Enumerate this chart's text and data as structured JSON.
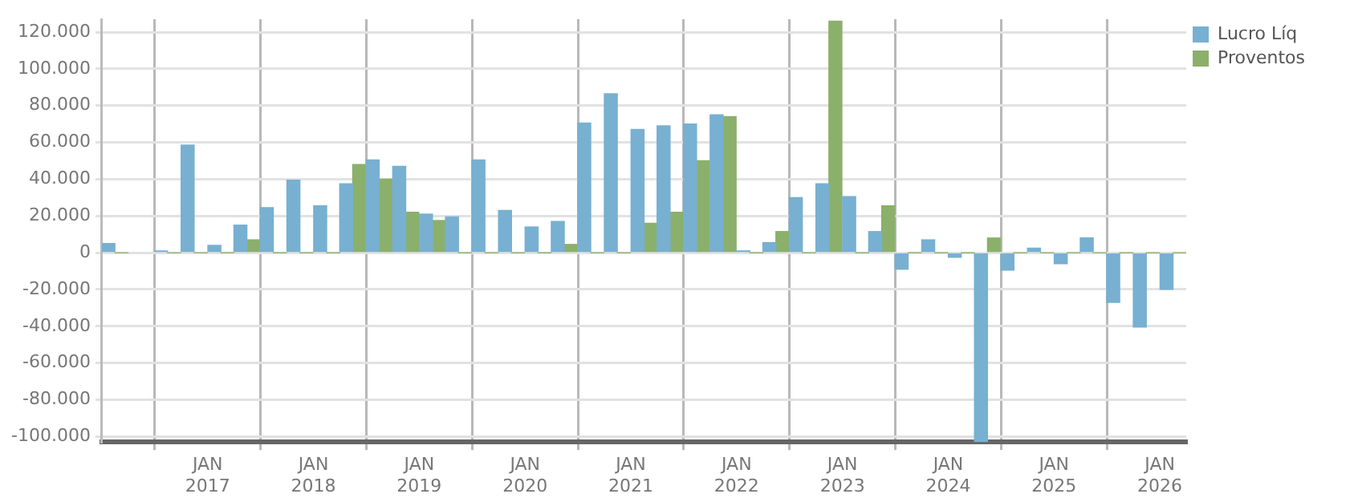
{
  "chart_data": {
    "type": "bar",
    "x": [
      "2016-02-15",
      "2016-05-15",
      "2016-08-15",
      "2016-11-15",
      "2017-02-15",
      "2017-05-15",
      "2017-08-15",
      "2017-11-15",
      "2018-02-15",
      "2018-05-15",
      "2018-08-15",
      "2018-11-15",
      "2019-02-15",
      "2019-05-15",
      "2019-08-15",
      "2019-11-15",
      "2020-02-15",
      "2020-05-15",
      "2020-08-15",
      "2020-11-15",
      "2021-02-15",
      "2021-05-15",
      "2021-08-15",
      "2021-11-15",
      "2022-02-15",
      "2022-05-15",
      "2022-08-15",
      "2022-11-15",
      "2023-02-15",
      "2023-05-15",
      "2023-08-15",
      "2023-11-15",
      "2024-02-15",
      "2024-05-15",
      "2024-08-15",
      "2024-11-15",
      "2025-02-15",
      "2025-05-15",
      "2025-08-15",
      "2025-11-15",
      "2026-02-15"
    ],
    "series": [
      {
        "name": "Lucro Líq",
        "color": "#77b0d1",
        "values": [
          5000,
          null,
          1000,
          58500,
          4000,
          15000,
          24500,
          39500,
          25500,
          37500,
          50500,
          47000,
          21000,
          19500,
          50500,
          23000,
          14000,
          17000,
          70500,
          86500,
          67000,
          69000,
          70000,
          75000,
          1000,
          5500,
          30000,
          37500,
          30500,
          11500,
          -9000,
          7000,
          -2500,
          -103000,
          -9500,
          2500,
          -6000,
          8000,
          -27000,
          -40500,
          -20000
        ]
      },
      {
        "name": "Proventos",
        "color": "#8ab06b",
        "values": [
          0,
          null,
          0,
          0,
          0,
          7000,
          0,
          0,
          0,
          48000,
          40000,
          22000,
          17500,
          0,
          0,
          0,
          0,
          4500,
          0,
          0,
          16000,
          22000,
          50000,
          74000,
          0,
          11500,
          0,
          126000,
          0,
          25500,
          0,
          0,
          0,
          8000,
          0,
          0,
          0,
          0,
          0,
          0,
          0
        ]
      }
    ],
    "xlim": [
      "2016-01-01",
      "2026-04-01"
    ],
    "xticks": [
      {
        "value": "2017-01-01",
        "label": "JAN\n2017"
      },
      {
        "value": "2018-01-01",
        "label": "JAN\n2018"
      },
      {
        "value": "2019-01-01",
        "label": "JAN\n2019"
      },
      {
        "value": "2020-01-01",
        "label": "JAN\n2020"
      },
      {
        "value": "2021-01-01",
        "label": "JAN\n2021"
      },
      {
        "value": "2022-01-01",
        "label": "JAN\n2022"
      },
      {
        "value": "2023-01-01",
        "label": "JAN\n2023"
      },
      {
        "value": "2024-01-01",
        "label": "JAN\n2024"
      },
      {
        "value": "2025-01-01",
        "label": "JAN\n2025"
      },
      {
        "value": "2026-01-01",
        "label": "JAN\n2026"
      }
    ],
    "ylim": [
      -103000,
      127000
    ],
    "yticks": [
      {
        "value": -100000,
        "label": "-100.000"
      },
      {
        "value": -80000,
        "label": "-80.000"
      },
      {
        "value": -60000,
        "label": "-60.000"
      },
      {
        "value": -40000,
        "label": "-40.000"
      },
      {
        "value": -20000,
        "label": "-20.000"
      },
      0,
      {
        "value": 20000,
        "label": "20.000"
      },
      {
        "value": 40000,
        "label": "40.000"
      },
      {
        "value": 60000,
        "label": "60.000"
      },
      {
        "value": 80000,
        "label": "80.000"
      },
      {
        "value": 100000,
        "label": "100.000"
      },
      {
        "value": 120000,
        "label": "120.000"
      }
    ],
    "grid": true,
    "legend": "top right"
  }
}
